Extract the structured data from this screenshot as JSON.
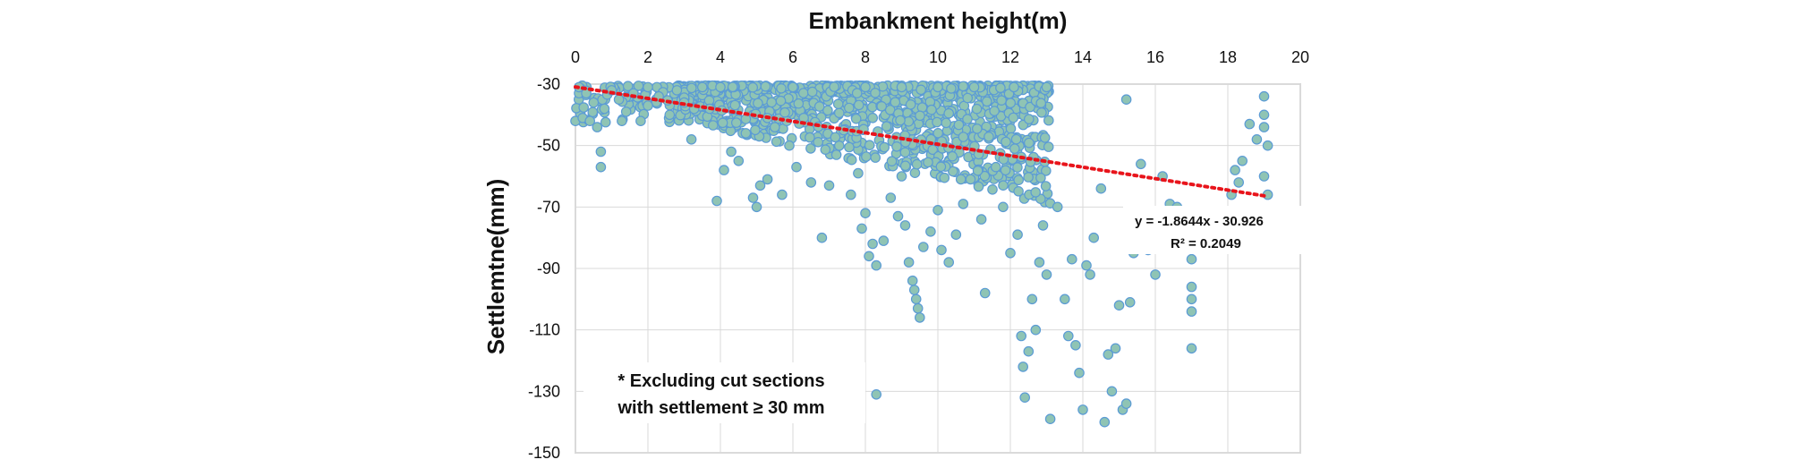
{
  "chart_data": {
    "type": "scatter",
    "title": "",
    "xlabel": "Embankment height(m)",
    "ylabel": "Settlemtne(mm)",
    "x_axis_position": "top",
    "xlim": [
      0,
      20
    ],
    "ylim": [
      -150,
      -30
    ],
    "x_ticks": [
      0,
      2,
      4,
      6,
      8,
      10,
      12,
      14,
      16,
      18,
      20
    ],
    "y_ticks": [
      -30,
      -50,
      -70,
      -90,
      -110,
      -130,
      -150
    ],
    "grid": true,
    "marker_color": "#8fc4b4",
    "marker_edge_color": "#5b9bd5",
    "trendline": {
      "style": "dotted",
      "color": "#e8141b",
      "slope": -1.8644,
      "intercept": -30.926,
      "x_range": [
        0,
        19
      ],
      "equation_label": "y = -1.8644x - 30.926",
      "r2_label": "R² = 0.2049"
    },
    "annotation": [
      "* Excluding cut sections",
      "with settlement ≥ 30 mm"
    ],
    "points": [
      [
        0.0,
        -42
      ],
      [
        0.1,
        -31
      ],
      [
        0.2,
        -41
      ],
      [
        0.3,
        -33
      ],
      [
        0.4,
        -42
      ],
      [
        0.5,
        -36
      ],
      [
        0.6,
        -44
      ],
      [
        0.7,
        -52
      ],
      [
        0.7,
        -57
      ],
      [
        0.8,
        -38
      ],
      [
        1.0,
        -32
      ],
      [
        1.2,
        -35
      ],
      [
        1.4,
        -39
      ],
      [
        1.6,
        -33
      ],
      [
        1.8,
        -42
      ],
      [
        2.0,
        -37
      ],
      [
        2.3,
        -34
      ],
      [
        2.6,
        -40
      ],
      [
        2.8,
        -32
      ],
      [
        3.0,
        -36
      ],
      [
        3.2,
        -48
      ],
      [
        3.5,
        -31
      ],
      [
        3.7,
        -38
      ],
      [
        3.9,
        -68
      ],
      [
        4.1,
        -58
      ],
      [
        4.3,
        -52
      ],
      [
        4.5,
        -55
      ],
      [
        4.7,
        -46
      ],
      [
        4.9,
        -67
      ],
      [
        5.0,
        -70
      ],
      [
        5.1,
        -63
      ],
      [
        5.3,
        -61
      ],
      [
        5.5,
        -44
      ],
      [
        5.7,
        -66
      ],
      [
        5.9,
        -50
      ],
      [
        6.1,
        -57
      ],
      [
        6.3,
        -41
      ],
      [
        6.5,
        -62
      ],
      [
        6.8,
        -80
      ],
      [
        7.0,
        -63
      ],
      [
        7.2,
        -53
      ],
      [
        7.4,
        -45
      ],
      [
        7.6,
        -66
      ],
      [
        7.8,
        -59
      ],
      [
        7.9,
        -77
      ],
      [
        8.0,
        -72
      ],
      [
        8.1,
        -86
      ],
      [
        8.2,
        -82
      ],
      [
        8.3,
        -89
      ],
      [
        8.3,
        -131
      ],
      [
        8.5,
        -81
      ],
      [
        8.7,
        -67
      ],
      [
        8.9,
        -73
      ],
      [
        9.0,
        -60
      ],
      [
        9.1,
        -76
      ],
      [
        9.2,
        -88
      ],
      [
        9.3,
        -94
      ],
      [
        9.35,
        -97
      ],
      [
        9.4,
        -100
      ],
      [
        9.45,
        -103
      ],
      [
        9.5,
        -106
      ],
      [
        9.6,
        -83
      ],
      [
        9.8,
        -78
      ],
      [
        10.0,
        -71
      ],
      [
        10.1,
        -84
      ],
      [
        10.3,
        -88
      ],
      [
        10.5,
        -79
      ],
      [
        10.7,
        -69
      ],
      [
        10.9,
        -61
      ],
      [
        11.2,
        -74
      ],
      [
        11.3,
        -98
      ],
      [
        11.6,
        -57
      ],
      [
        11.8,
        -70
      ],
      [
        12.0,
        -85
      ],
      [
        12.2,
        -79
      ],
      [
        12.3,
        -112
      ],
      [
        12.35,
        -122
      ],
      [
        12.4,
        -132
      ],
      [
        12.5,
        -117
      ],
      [
        12.6,
        -100
      ],
      [
        12.7,
        -110
      ],
      [
        12.8,
        -88
      ],
      [
        12.9,
        -76
      ],
      [
        13.0,
        -92
      ],
      [
        13.1,
        -139
      ],
      [
        13.3,
        -70
      ],
      [
        13.5,
        -100
      ],
      [
        13.6,
        -112
      ],
      [
        13.7,
        -87
      ],
      [
        13.8,
        -115
      ],
      [
        13.9,
        -124
      ],
      [
        14.0,
        -136
      ],
      [
        14.1,
        -89
      ],
      [
        14.2,
        -92
      ],
      [
        14.3,
        -80
      ],
      [
        14.5,
        -64
      ],
      [
        14.6,
        -140
      ],
      [
        14.7,
        -118
      ],
      [
        14.8,
        -130
      ],
      [
        14.9,
        -116
      ],
      [
        15.0,
        -102
      ],
      [
        15.1,
        -136
      ],
      [
        15.2,
        -134
      ],
      [
        15.3,
        -101
      ],
      [
        15.4,
        -85
      ],
      [
        15.5,
        -72
      ],
      [
        15.6,
        -56
      ],
      [
        15.8,
        -84
      ],
      [
        16.0,
        -92
      ],
      [
        16.2,
        -60
      ],
      [
        16.4,
        -69
      ],
      [
        16.6,
        -70
      ],
      [
        17.0,
        -87
      ],
      [
        17.0,
        -96
      ],
      [
        17.0,
        -100
      ],
      [
        17.0,
        -104
      ],
      [
        17.0,
        -116
      ],
      [
        17.1,
        -80
      ],
      [
        18.2,
        -58
      ],
      [
        18.3,
        -62
      ],
      [
        18.4,
        -55
      ],
      [
        18.6,
        -43
      ],
      [
        18.8,
        -48
      ],
      [
        19.0,
        -40
      ],
      [
        19.0,
        -34
      ],
      [
        19.0,
        -44
      ],
      [
        19.0,
        -60
      ],
      [
        19.1,
        -66
      ],
      [
        19.1,
        -50
      ],
      [
        18.1,
        -66
      ],
      [
        15.2,
        -35
      ],
      [
        13.0,
        -31
      ],
      [
        12.1,
        -31
      ],
      [
        11.0,
        -31
      ],
      [
        10.0,
        -31
      ],
      [
        9.0,
        -31
      ],
      [
        8.0,
        -31
      ],
      [
        6.0,
        -31
      ],
      [
        4.0,
        -31
      ],
      [
        2.0,
        -31
      ]
    ]
  }
}
